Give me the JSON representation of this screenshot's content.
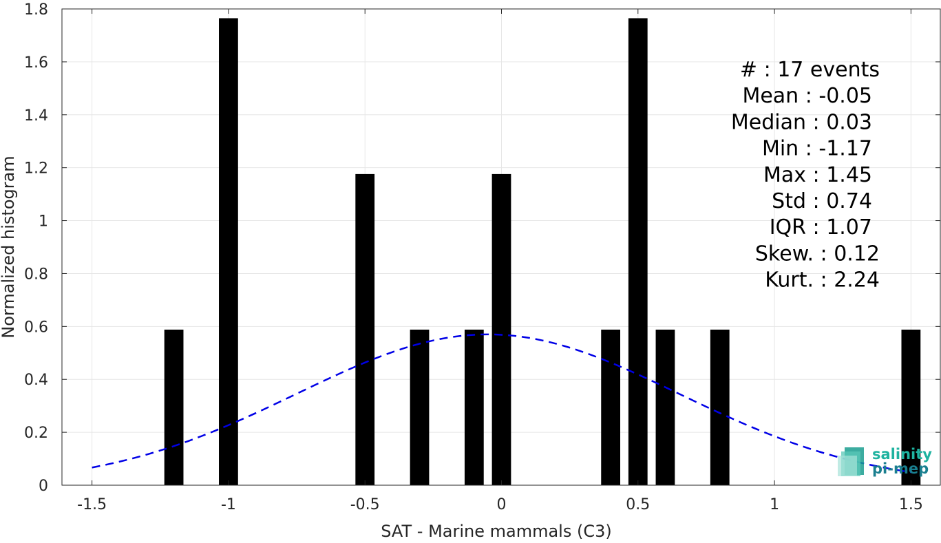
{
  "chart_data": {
    "type": "bar",
    "title": "",
    "xlabel": "SAT - Marine mammals (C3)",
    "ylabel": "Normalized histogram",
    "xlim": [
      -1.61,
      1.61
    ],
    "ylim": [
      0,
      1.8
    ],
    "grid": true,
    "bar_width": 0.07,
    "bar_color": "#000000",
    "bars": [
      {
        "x": -1.2,
        "y": 0.588
      },
      {
        "x": -1.0,
        "y": 1.765
      },
      {
        "x": -0.5,
        "y": 1.176
      },
      {
        "x": -0.3,
        "y": 0.588
      },
      {
        "x": -0.1,
        "y": 0.588
      },
      {
        "x": 0.0,
        "y": 1.176
      },
      {
        "x": 0.4,
        "y": 0.588
      },
      {
        "x": 0.5,
        "y": 1.765
      },
      {
        "x": 0.6,
        "y": 0.588
      },
      {
        "x": 0.8,
        "y": 0.588
      },
      {
        "x": 1.5,
        "y": 0.588
      }
    ],
    "fit_curve": {
      "style": "dashed",
      "color": "#0000e6",
      "mean": -0.05,
      "std": 0.7,
      "x_range": [
        -1.5,
        1.5
      ]
    },
    "xticks": [
      {
        "value": -1.5,
        "label": "-1.5"
      },
      {
        "value": -1,
        "label": "-1"
      },
      {
        "value": -0.5,
        "label": "-0.5"
      },
      {
        "value": 0,
        "label": "0"
      },
      {
        "value": 0.5,
        "label": "0.5"
      },
      {
        "value": 1,
        "label": "1"
      },
      {
        "value": 1.5,
        "label": "1.5"
      }
    ],
    "yticks": [
      {
        "value": 0,
        "label": "0"
      },
      {
        "value": 0.2,
        "label": "0.2"
      },
      {
        "value": 0.4,
        "label": "0.4"
      },
      {
        "value": 0.6,
        "label": "0.6"
      },
      {
        "value": 0.8,
        "label": "0.8"
      },
      {
        "value": 1,
        "label": "1"
      },
      {
        "value": 1.2,
        "label": "1.2"
      },
      {
        "value": 1.4,
        "label": "1.4"
      },
      {
        "value": 1.6,
        "label": "1.6"
      },
      {
        "value": 1.8,
        "label": "1.8"
      }
    ],
    "annotations": [
      "#  : 17 events",
      "Mean : -0.05",
      "Median : 0.03",
      "Min : -1.17",
      "Max : 1.45",
      "Std : 0.74",
      "IQR : 1.07",
      "Skew. : 0.12",
      "Kurt. : 2.24"
    ]
  },
  "logo": {
    "line1": "salinity",
    "line2": "pi-mep",
    "color": "#1fb3a0"
  },
  "colors": {
    "grid": "#e6e6e6",
    "axis": "#262626"
  }
}
